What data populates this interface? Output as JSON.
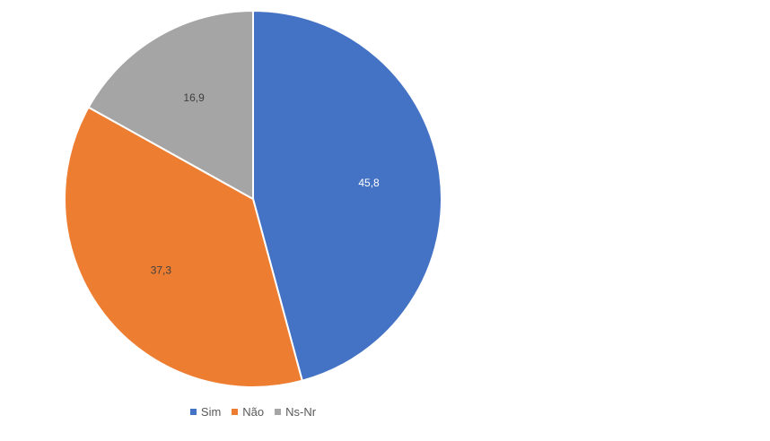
{
  "chart_data": {
    "type": "pie",
    "categories": [
      "Sim",
      "Não",
      "Ns-Nr"
    ],
    "values": [
      45.8,
      37.3,
      16.9
    ],
    "data_labels": [
      "45,8",
      "37,3",
      "16,9"
    ],
    "colors": [
      "#4472c4",
      "#ed7d31",
      "#a5a5a5"
    ],
    "label_colors": [
      "#ffffff",
      "#404040",
      "#404040"
    ],
    "legend_position": "bottom",
    "start_angle": "top, clockwise"
  }
}
